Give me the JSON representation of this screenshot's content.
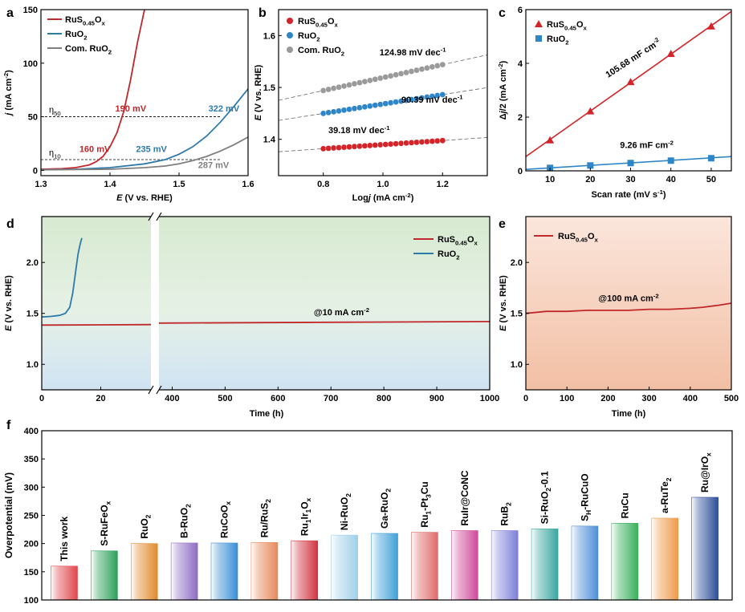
{
  "chart_data": [
    {
      "panel": "a",
      "type": "line",
      "xlabel_italic": "E",
      "xlabel_rest": " (V vs. RHE)",
      "ylabel_italic": "j",
      "ylabel_rest": " (mA cm",
      "ylabel_sup": "-2",
      "ylabel_end": ")",
      "xlim": [
        1.3,
        1.6
      ],
      "ylim": [
        -5,
        150
      ],
      "xticks": [
        "1.3",
        "1.4",
        "1.5",
        "1.6"
      ],
      "xtick_values": [
        1.3,
        1.4,
        1.5,
        1.6
      ],
      "yticks": [
        "0",
        "50",
        "100",
        "150"
      ],
      "ytick_values": [
        0,
        50,
        100,
        150
      ],
      "legend_position": "top-left",
      "series": [
        {
          "name": "RuS0.45Ox",
          "name_base": "RuS",
          "name_sub": "0.45",
          "name_mid": "O",
          "name_sub2": "x",
          "color": "#c0282b",
          "x": [
            1.3,
            1.33,
            1.35,
            1.37,
            1.38,
            1.39,
            1.4,
            1.41,
            1.42,
            1.43,
            1.44,
            1.45
          ],
          "y": [
            1.0,
            1.5,
            2.5,
            5.0,
            8.0,
            13.0,
            22.0,
            35.0,
            55.0,
            85.0,
            120.0,
            150.0
          ]
        },
        {
          "name": "RuO2",
          "name_base": "RuO",
          "name_sub": "2",
          "color": "#2e7aab",
          "x": [
            1.3,
            1.35,
            1.4,
            1.45,
            1.48,
            1.5,
            1.52,
            1.54,
            1.56,
            1.58,
            1.6
          ],
          "y": [
            0.5,
            1.0,
            2.5,
            6.0,
            10.0,
            15.0,
            22.0,
            32.0,
            45.0,
            60.0,
            76.0
          ]
        },
        {
          "name": "Com. RuO2",
          "name_base": "Com. RuO",
          "name_sub": "2",
          "color": "#7f7f7f",
          "x": [
            1.3,
            1.4,
            1.45,
            1.48,
            1.5,
            1.52,
            1.54,
            1.56,
            1.58,
            1.6
          ],
          "y": [
            0.5,
            1.0,
            2.5,
            4.0,
            6.0,
            9.0,
            13.0,
            18.0,
            24.0,
            31.0
          ]
        }
      ],
      "reference_lines": [
        {
          "y": 50,
          "label_base": "η",
          "label_sub": "50"
        },
        {
          "y": 10,
          "label_base": "η",
          "label_sub": "10"
        }
      ],
      "annotations": [
        {
          "text": "190 mV",
          "color": "#c0282b",
          "x": 1.43,
          "y": 55
        },
        {
          "text": "322 mV",
          "color": "#2e7aab",
          "x": 1.565,
          "y": 55
        },
        {
          "text": "160 mV",
          "color": "#c0282b",
          "x": 1.378,
          "y": 17
        },
        {
          "text": "235 mV",
          "color": "#2e7aab",
          "x": 1.46,
          "y": 17
        },
        {
          "text": "287 mV",
          "color": "#7f7f7f",
          "x": 1.55,
          "y": 2
        }
      ]
    },
    {
      "panel": "b",
      "type": "scatter",
      "xlabel_plain": "Log",
      "xlabel_italic": "j",
      "xlabel_rest": " (mA cm",
      "xlabel_sup": "-2",
      "xlabel_end": ")",
      "ylabel_italic": "E",
      "ylabel_rest": " (V vs. RHE)",
      "xlim": [
        0.65,
        1.35
      ],
      "ylim": [
        1.33,
        1.65
      ],
      "xticks": [
        "0.8",
        "1.0",
        "1.2"
      ],
      "xtick_values": [
        0.8,
        1.0,
        1.2
      ],
      "yticks": [
        "1.4",
        "1.5",
        "1.6"
      ],
      "ytick_values": [
        1.4,
        1.5,
        1.6
      ],
      "legend_position": "top-left",
      "x_start": 0.8,
      "x_end": 1.2,
      "points_per_series": 24,
      "series": [
        {
          "name": "RuS0.45Ox",
          "name_base": "RuS",
          "name_sub": "0.45",
          "name_mid": "O",
          "name_sub2": "x",
          "color": "#d3242a",
          "slope_mV_dec": 39.18,
          "y_at_0_8": 1.382
        },
        {
          "name": "RuO2",
          "name_base": "RuO",
          "name_sub": "2",
          "color": "#2f86c6",
          "slope_mV_dec": 90.39,
          "y_at_0_8": 1.45
        },
        {
          "name": "Com. RuO2",
          "name_base": "Com. RuO",
          "name_sub": "2",
          "color": "#9a9a9a",
          "slope_mV_dec": 124.98,
          "y_at_0_8": 1.494
        }
      ],
      "annotations": [
        {
          "text": "124.98 mV dec",
          "sup": "-1",
          "x": 1.1,
          "y": 1.562
        },
        {
          "text": "90.39 mV dec",
          "sup": "-1",
          "x": 1.165,
          "y": 1.471
        },
        {
          "text": "39.18 mV dec",
          "sup": "-1",
          "x": 0.92,
          "y": 1.412
        }
      ]
    },
    {
      "panel": "c",
      "type": "scatter",
      "xlabel": "Scan rate (mV s",
      "xlabel_sup": "-1",
      "xlabel_end": ")",
      "ylabel_pre": "Δ",
      "ylabel_italic": "j",
      "ylabel_rest": "/2 (mA cm",
      "ylabel_sup": "-2",
      "ylabel_end": ")",
      "xlim": [
        4,
        55
      ],
      "ylim": [
        0,
        6
      ],
      "xticks": [
        "10",
        "20",
        "30",
        "40",
        "50"
      ],
      "xtick_values": [
        10,
        20,
        30,
        40,
        50
      ],
      "yticks": [
        "0",
        "2",
        "4",
        "6"
      ],
      "ytick_values": [
        0,
        2,
        4,
        6
      ],
      "legend_position": "top-left",
      "series": [
        {
          "name": "RuS0.45Ox",
          "name_base": "RuS",
          "name_sub": "0.45",
          "name_mid": "O",
          "name_sub2": "x",
          "color": "#d3242a",
          "marker": "triangle",
          "x": [
            10,
            20,
            30,
            40,
            50
          ],
          "y": [
            1.14,
            2.22,
            3.31,
            4.36,
            5.38
          ],
          "fit": {
            "x": [
              4,
              55
            ],
            "y": [
              0.53,
              5.93
            ]
          }
        },
        {
          "name": "RuO2",
          "name_base": "RuO",
          "name_sub": "2",
          "color": "#2f86c6",
          "marker": "square",
          "x": [
            10,
            20,
            30,
            40,
            50
          ],
          "y": [
            0.11,
            0.2,
            0.29,
            0.38,
            0.47
          ],
          "fit": {
            "x": [
              4,
              55
            ],
            "y": [
              0.055,
              0.53
            ]
          }
        }
      ],
      "annotations": [
        {
          "text": "105.68 mF cm",
          "sup": "-2",
          "x": 31,
          "y": 4.1,
          "rotate": -33
        },
        {
          "text": "9.26 mF cm",
          "sup": "-2",
          "x": 34,
          "y": 0.85,
          "rotate": 0
        }
      ]
    },
    {
      "panel": "d",
      "type": "line",
      "xlabel": "Time (h)",
      "ylabel_italic": "E",
      "ylabel_rest": " (V vs. RHE)",
      "ylim": [
        0.75,
        2.45
      ],
      "yticks": [
        "1.0",
        "1.5",
        "2.0"
      ],
      "ytick_values": [
        1.0,
        1.5,
        2.0
      ],
      "broken_axis": {
        "left_range": [
          0,
          37
        ],
        "right_range": [
          375,
          1000
        ]
      },
      "xticks_left": [
        "0",
        "20"
      ],
      "xtick_values_left": [
        0,
        20
      ],
      "xticks_right": [
        "400",
        "500",
        "600",
        "700",
        "800",
        "900",
        "1000"
      ],
      "xtick_values_right": [
        400,
        500,
        600,
        700,
        800,
        900,
        1000
      ],
      "legend_position": "top-right",
      "series": [
        {
          "name": "RuS0.45Ox",
          "name_base": "RuS",
          "name_sub": "0.45",
          "name_mid": "O",
          "name_sub2": "x",
          "color": "#c0282b",
          "x": [
            0,
            37,
            375,
            1000
          ],
          "y": [
            1.385,
            1.39,
            1.405,
            1.42
          ]
        },
        {
          "name": "RuO2",
          "name_base": "RuO",
          "name_sub": "2",
          "color": "#2e7aab",
          "x": [
            0,
            3,
            6,
            8,
            9.5,
            10.5,
            11.2,
            11.8,
            12.3,
            12.8,
            13.2,
            13.6
          ],
          "y": [
            1.465,
            1.47,
            1.48,
            1.5,
            1.56,
            1.7,
            1.85,
            1.98,
            2.08,
            2.15,
            2.2,
            2.24
          ]
        }
      ],
      "annotations": [
        {
          "text": "@10 mA cm",
          "sup": "-2",
          "x": 720,
          "y": 1.48
        }
      ]
    },
    {
      "panel": "e",
      "type": "line",
      "xlabel": "Time (h)",
      "ylabel_italic": "E",
      "ylabel_rest": " (V vs. RHE)",
      "xlim": [
        0,
        500
      ],
      "ylim": [
        0.75,
        2.45
      ],
      "xticks": [
        "0",
        "100",
        "200",
        "300",
        "400",
        "500"
      ],
      "xtick_values": [
        0,
        100,
        200,
        300,
        400,
        500
      ],
      "yticks": [
        "1.0",
        "1.5",
        "2.0"
      ],
      "ytick_values": [
        1.0,
        1.5,
        2.0
      ],
      "legend_position": "top-left",
      "series": [
        {
          "name": "RuS0.45Ox",
          "name_base": "RuS",
          "name_sub": "0.45",
          "name_mid": "O",
          "name_sub2": "x",
          "color": "#c0282b",
          "x": [
            0,
            50,
            100,
            150,
            200,
            250,
            300,
            350,
            400,
            430,
            450,
            470,
            500
          ],
          "y": [
            1.5,
            1.52,
            1.52,
            1.53,
            1.53,
            1.53,
            1.54,
            1.54,
            1.55,
            1.56,
            1.57,
            1.58,
            1.6
          ]
        }
      ],
      "annotations": [
        {
          "text": "@100 mA cm",
          "sup": "-2",
          "x": 250,
          "y": 1.62
        }
      ]
    },
    {
      "panel": "f",
      "type": "bar",
      "ylabel": "Overpotential (mV)",
      "ylim": [
        100,
        400
      ],
      "yticks": [
        "100",
        "150",
        "200",
        "250",
        "300",
        "350",
        "400"
      ],
      "ytick_values": [
        100,
        150,
        200,
        250,
        300,
        350,
        400
      ],
      "bars": [
        {
          "label": "This work",
          "label_parts": [
            [
              "This work",
              ""
            ]
          ],
          "value": 160,
          "color": "#e0474c"
        },
        {
          "label": "S-RuFeOx",
          "label_parts": [
            [
              "S-RuFeO",
              ""
            ],
            [
              "x",
              "sub"
            ]
          ],
          "value": 187,
          "color": "#2ca05a"
        },
        {
          "label": "RuO2",
          "label_parts": [
            [
              "RuO",
              ""
            ],
            [
              "2",
              "sub"
            ]
          ],
          "value": 200,
          "color": "#e08a2e"
        },
        {
          "label": "B-RuO2",
          "label_parts": [
            [
              "B-RuO",
              ""
            ],
            [
              "2",
              "sub"
            ]
          ],
          "value": 201,
          "color": "#8e6cc4"
        },
        {
          "label": "RuCoOx",
          "label_parts": [
            [
              "RuCoO",
              ""
            ],
            [
              "x",
              "sub"
            ]
          ],
          "value": 201,
          "color": "#3a8fd4"
        },
        {
          "label": "Ru/RuS2",
          "label_parts": [
            [
              "Ru/RuS",
              ""
            ],
            [
              "2",
              "sub"
            ]
          ],
          "value": 202,
          "color": "#e8885a"
        },
        {
          "label": "Ru1Ir1Ox",
          "label_parts": [
            [
              "Ru",
              ""
            ],
            [
              "1",
              "sub"
            ],
            [
              "Ir",
              ""
            ],
            [
              "1",
              "sub"
            ],
            [
              "O",
              ""
            ],
            [
              "x",
              "sub"
            ]
          ],
          "value": 205,
          "color": "#d2333f"
        },
        {
          "label": "Ni-RuO2",
          "label_parts": [
            [
              "Ni-RuO",
              ""
            ],
            [
              "2",
              "sub"
            ]
          ],
          "value": 215,
          "color": "#9fd0ea"
        },
        {
          "label": "Ga-RuO2",
          "label_parts": [
            [
              "Ga-RuO",
              ""
            ],
            [
              "2",
              "sub"
            ]
          ],
          "value": 218,
          "color": "#3fa0d8"
        },
        {
          "label": "Ru1-Pt3Cu",
          "label_parts": [
            [
              "Ru",
              ""
            ],
            [
              "1",
              "sub"
            ],
            [
              "-Pt",
              ""
            ],
            [
              "3",
              "sub"
            ],
            [
              "Cu",
              ""
            ]
          ],
          "value": 220,
          "color": "#e06a6a"
        },
        {
          "label": "RuIr@CoNC",
          "label_parts": [
            [
              "RuIr@CoNC",
              ""
            ]
          ],
          "value": 223,
          "color": "#d04a9a"
        },
        {
          "label": "RuB2",
          "label_parts": [
            [
              "RuB",
              ""
            ],
            [
              "2",
              "sub"
            ]
          ],
          "value": 223,
          "color": "#7d7fd8"
        },
        {
          "label": "Si-RuO2-0.1",
          "label_parts": [
            [
              "Si-RuO",
              ""
            ],
            [
              "2",
              "sub"
            ],
            [
              "-0.1",
              ""
            ]
          ],
          "value": 226,
          "color": "#3aa6a0"
        },
        {
          "label": "SH-RuCuO",
          "label_parts": [
            [
              "S",
              ""
            ],
            [
              "H",
              "sub"
            ],
            [
              "-RuCuO",
              ""
            ]
          ],
          "value": 231,
          "color": "#4f8ed8"
        },
        {
          "label": "RuCu",
          "label_parts": [
            [
              "RuCu",
              ""
            ]
          ],
          "value": 236,
          "color": "#38b05c"
        },
        {
          "label": "a-RuTe2",
          "label_parts": [
            [
              "a-RuTe",
              ""
            ],
            [
              "2",
              "sub"
            ]
          ],
          "value": 245,
          "color": "#ef9a4a"
        },
        {
          "label": "Ru@IrOx",
          "label_parts": [
            [
              "Ru@IrO",
              ""
            ],
            [
              "x",
              "sub"
            ]
          ],
          "value": 282,
          "color": "#2d4f9a"
        }
      ]
    }
  ],
  "panel_labels": {
    "a": "a",
    "b": "b",
    "c": "c",
    "d": "d",
    "e": "e",
    "f": "f"
  }
}
